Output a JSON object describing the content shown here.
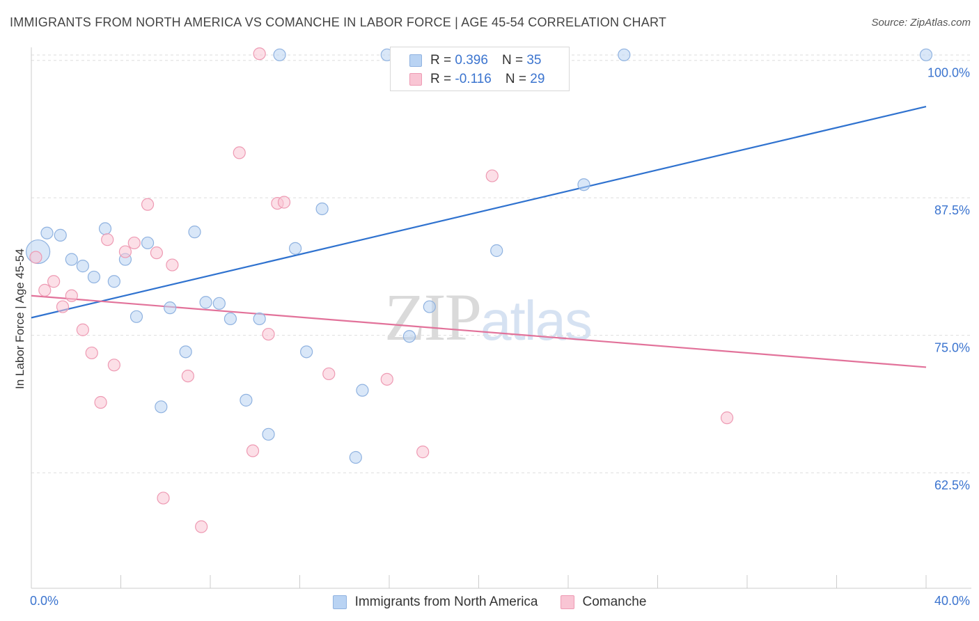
{
  "title": "IMMIGRANTS FROM NORTH AMERICA VS COMANCHE IN LABOR FORCE | AGE 45-54 CORRELATION CHART",
  "source": "Source: ZipAtlas.com",
  "watermark": {
    "zip": "ZIP",
    "atlas": "atlas"
  },
  "legend_top": {
    "rows": [
      {
        "r_label": "R =",
        "r_value": "0.396",
        "n_label": "N =",
        "n_value": "35"
      },
      {
        "r_label": "R =",
        "r_value": "-0.116",
        "n_label": "N =",
        "n_value": "29"
      }
    ]
  },
  "bottom_legend": {
    "items": [
      {
        "label": "Immigrants from North America"
      },
      {
        "label": "Comanche"
      }
    ]
  },
  "colors": {
    "blue_fill": "#b9d3f3",
    "blue_stroke": "#8fb2e0",
    "blue_line": "#2f72cf",
    "pink_fill": "#f9c5d4",
    "pink_stroke": "#ee9ab3",
    "pink_line": "#e2729a",
    "tick_label": "#3b74cf",
    "grid": "#dddddd"
  },
  "chart_data": {
    "type": "scatter",
    "title": "IMMIGRANTS FROM NORTH AMERICA VS COMANCHE IN LABOR FORCE | AGE 45-54 CORRELATION CHART",
    "xlabel": "",
    "ylabel": "In Labor Force | Age 45-54",
    "xlim": [
      0,
      40
    ],
    "ylim": [
      52,
      101.5
    ],
    "x_tick_labels": [
      {
        "value": 0,
        "label": "0.0%"
      },
      {
        "value": 40,
        "label": "40.0%"
      }
    ],
    "y_ticks": [
      {
        "value": 62.5,
        "label": "62.5%"
      },
      {
        "value": 75,
        "label": "75.0%"
      },
      {
        "value": 87.5,
        "label": "87.5%"
      },
      {
        "value": 100,
        "label": "100.0%"
      }
    ],
    "grid": true,
    "legend_position": "top-center",
    "series": [
      {
        "name": "Immigrants from North America",
        "color": "#b9d3f3",
        "trend": {
          "x": [
            0,
            40
          ],
          "y": [
            76.6,
            95.8
          ]
        },
        "points": [
          {
            "x": 0.3,
            "y": 82.6,
            "big": true
          },
          {
            "x": 0.7,
            "y": 84.3
          },
          {
            "x": 1.3,
            "y": 84.1
          },
          {
            "x": 1.8,
            "y": 81.9
          },
          {
            "x": 2.3,
            "y": 81.3
          },
          {
            "x": 2.8,
            "y": 80.3
          },
          {
            "x": 3.3,
            "y": 84.7
          },
          {
            "x": 3.7,
            "y": 79.9
          },
          {
            "x": 4.2,
            "y": 81.9
          },
          {
            "x": 4.7,
            "y": 76.7
          },
          {
            "x": 5.2,
            "y": 83.4
          },
          {
            "x": 5.8,
            "y": 68.5
          },
          {
            "x": 6.2,
            "y": 77.5
          },
          {
            "x": 6.9,
            "y": 73.5
          },
          {
            "x": 7.3,
            "y": 84.4
          },
          {
            "x": 7.8,
            "y": 78.0
          },
          {
            "x": 8.4,
            "y": 77.9
          },
          {
            "x": 8.9,
            "y": 76.5
          },
          {
            "x": 9.6,
            "y": 69.1
          },
          {
            "x": 10.2,
            "y": 76.5
          },
          {
            "x": 10.6,
            "y": 66.0
          },
          {
            "x": 11.1,
            "y": 100.5
          },
          {
            "x": 11.8,
            "y": 82.9
          },
          {
            "x": 12.3,
            "y": 73.5
          },
          {
            "x": 13.0,
            "y": 86.5
          },
          {
            "x": 14.5,
            "y": 63.9
          },
          {
            "x": 14.8,
            "y": 70.0
          },
          {
            "x": 15.9,
            "y": 100.5
          },
          {
            "x": 16.6,
            "y": 100.5
          },
          {
            "x": 16.9,
            "y": 74.9
          },
          {
            "x": 17.8,
            "y": 77.6
          },
          {
            "x": 20.8,
            "y": 82.7
          },
          {
            "x": 24.7,
            "y": 88.7
          },
          {
            "x": 26.5,
            "y": 100.5
          },
          {
            "x": 40.0,
            "y": 100.5
          }
        ]
      },
      {
        "name": "Comanche",
        "color": "#f9c5d4",
        "trend": {
          "x": [
            0,
            40
          ],
          "y": [
            78.6,
            72.1
          ]
        },
        "points": [
          {
            "x": 0.2,
            "y": 82.1
          },
          {
            "x": 0.6,
            "y": 79.1
          },
          {
            "x": 1.0,
            "y": 79.9
          },
          {
            "x": 1.4,
            "y": 77.6
          },
          {
            "x": 1.8,
            "y": 78.6
          },
          {
            "x": 2.3,
            "y": 75.5
          },
          {
            "x": 2.7,
            "y": 73.4
          },
          {
            "x": 3.1,
            "y": 68.9
          },
          {
            "x": 3.4,
            "y": 83.7
          },
          {
            "x": 3.7,
            "y": 72.3
          },
          {
            "x": 4.2,
            "y": 82.6
          },
          {
            "x": 4.6,
            "y": 83.4
          },
          {
            "x": 5.2,
            "y": 86.9
          },
          {
            "x": 5.6,
            "y": 82.5
          },
          {
            "x": 5.9,
            "y": 60.2
          },
          {
            "x": 6.3,
            "y": 81.4
          },
          {
            "x": 7.0,
            "y": 71.3
          },
          {
            "x": 7.6,
            "y": 57.6
          },
          {
            "x": 9.3,
            "y": 91.6
          },
          {
            "x": 9.9,
            "y": 64.5
          },
          {
            "x": 10.2,
            "y": 100.6
          },
          {
            "x": 10.6,
            "y": 75.1
          },
          {
            "x": 11.0,
            "y": 87.0
          },
          {
            "x": 11.3,
            "y": 87.1
          },
          {
            "x": 13.3,
            "y": 71.5
          },
          {
            "x": 15.9,
            "y": 71.0
          },
          {
            "x": 17.5,
            "y": 64.4
          },
          {
            "x": 20.6,
            "y": 89.5
          },
          {
            "x": 31.1,
            "y": 67.5
          }
        ]
      }
    ]
  }
}
